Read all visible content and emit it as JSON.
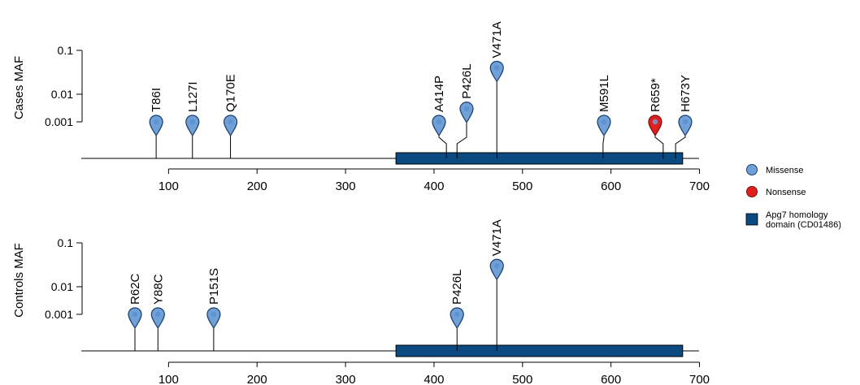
{
  "chart_data": [
    {
      "type": "lollipop",
      "ylabel": "Cases MAF",
      "y_ticks": [
        "0.1",
        "0.01",
        "0.001"
      ],
      "x_ticks": [
        100,
        200,
        300,
        400,
        500,
        600,
        700
      ],
      "xlim": [
        0,
        700
      ],
      "domain": {
        "start": 357,
        "end": 681,
        "label": "Apg7 homology domain (CD01486)"
      },
      "mutations": [
        {
          "label": "T86I",
          "position": 86,
          "maf_level": "0.001",
          "type": "Missense"
        },
        {
          "label": "L127I",
          "position": 127,
          "maf_level": "0.001",
          "type": "Missense"
        },
        {
          "label": "Q170E",
          "position": 170,
          "maf_level": "0.001",
          "type": "Missense"
        },
        {
          "label": "A414P",
          "position": 414,
          "maf_level": "0.001",
          "type": "Missense"
        },
        {
          "label": "P426L",
          "position": 426,
          "maf_level": "0.003",
          "type": "Missense"
        },
        {
          "label": "V471A",
          "position": 471,
          "maf_level": "0.04",
          "type": "Missense"
        },
        {
          "label": "M591L",
          "position": 591,
          "maf_level": "0.001",
          "type": "Missense"
        },
        {
          "label": "R659*",
          "position": 659,
          "maf_level": "0.001",
          "type": "Nonsense"
        },
        {
          "label": "H673Y",
          "position": 673,
          "maf_level": "0.001",
          "type": "Missense"
        }
      ]
    },
    {
      "type": "lollipop",
      "ylabel": "Controls MAF",
      "y_ticks": [
        "0.1",
        "0.01",
        "0.001"
      ],
      "x_ticks": [
        100,
        200,
        300,
        400,
        500,
        600,
        700
      ],
      "xlim": [
        0,
        700
      ],
      "domain": {
        "start": 357,
        "end": 681,
        "label": "Apg7 homology domain (CD01486)"
      },
      "mutations": [
        {
          "label": "R62C",
          "position": 62,
          "maf_level": "0.001",
          "type": "Missense"
        },
        {
          "label": "Y88C",
          "position": 88,
          "maf_level": "0.001",
          "type": "Missense"
        },
        {
          "label": "P151S",
          "position": 151,
          "maf_level": "0.001",
          "type": "Missense"
        },
        {
          "label": "P426L",
          "position": 426,
          "maf_level": "0.001",
          "type": "Missense"
        },
        {
          "label": "V471A",
          "position": 471,
          "maf_level": "0.03",
          "type": "Missense"
        }
      ]
    }
  ],
  "legend": {
    "items": [
      {
        "label": "Missense",
        "shape": "circle",
        "color": "#6fa0d8"
      },
      {
        "label": "Nonsense",
        "shape": "circle",
        "color": "#e01f1f"
      },
      {
        "label": "Apg7 homology\ndomain (CD01486)",
        "shape": "square",
        "color": "#0a4a80"
      }
    ]
  },
  "colors": {
    "missense": "#6fa0d8",
    "missense_stroke": "#1a3f6b",
    "nonsense": "#e01f1f",
    "nonsense_stroke": "#7a0f0f",
    "domain": "#0a4a80"
  }
}
